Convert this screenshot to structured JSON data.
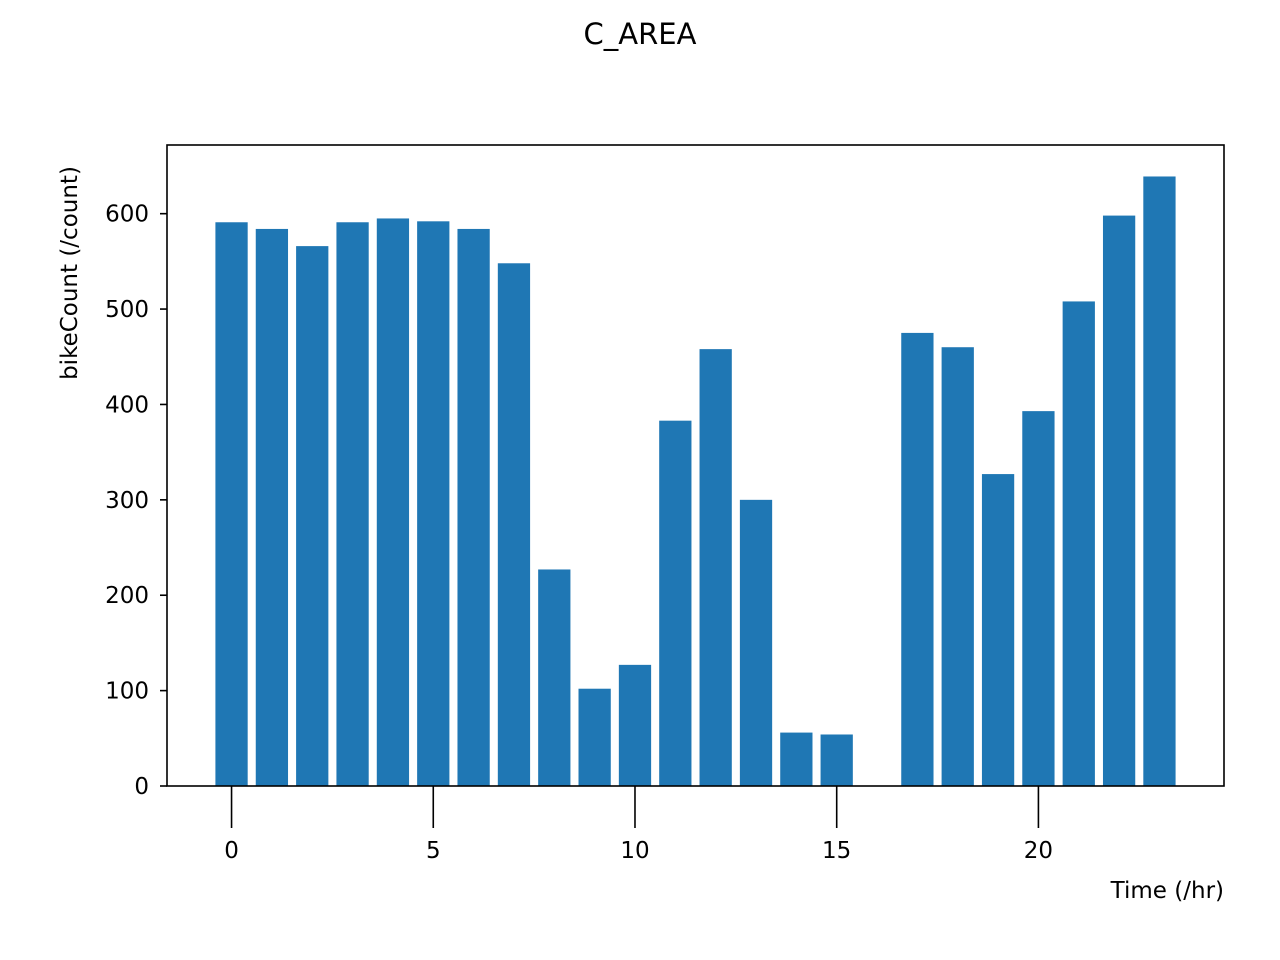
{
  "chart_data": {
    "type": "bar",
    "title": "C_AREA",
    "xlabel": "Time (/hr)",
    "ylabel": "bikeCount (/count)",
    "x": [
      0,
      1,
      2,
      3,
      4,
      5,
      6,
      7,
      8,
      9,
      10,
      11,
      12,
      13,
      14,
      15,
      17,
      18,
      19,
      20,
      21,
      22,
      23
    ],
    "values": [
      591,
      584,
      566,
      591,
      595,
      592,
      584,
      548,
      227,
      102,
      127,
      383,
      458,
      300,
      56,
      54,
      475,
      460,
      327,
      393,
      508,
      598,
      639
    ],
    "xlim": [
      -1.6,
      24.6
    ],
    "ylim": [
      0,
      672
    ],
    "xticks": [
      0,
      5,
      10,
      15,
      20
    ],
    "yticks": [
      0,
      100,
      200,
      300,
      400,
      500,
      600
    ],
    "bar_color": "#1f77b4",
    "grid": false,
    "legend": "none"
  }
}
